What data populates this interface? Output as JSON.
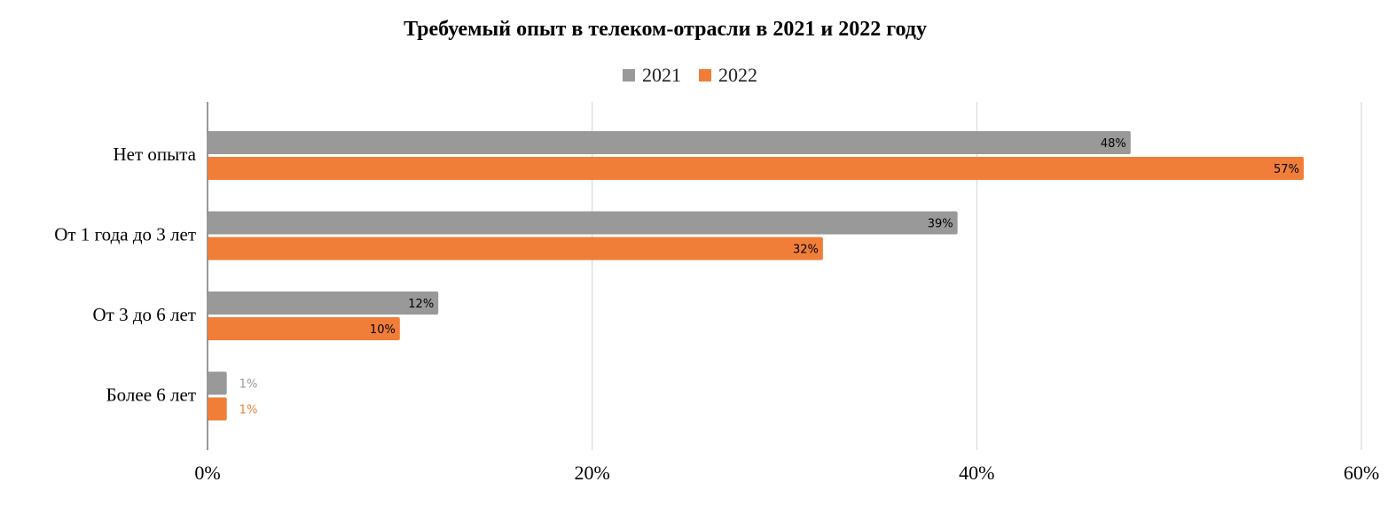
{
  "chart_data": {
    "type": "bar",
    "orientation": "horizontal",
    "title": "Требуемый опыт в телеком-отрасли в 2021 и 2022 году",
    "categories": [
      "Нет опыта",
      "От 1 года до 3 лет",
      "От 3 до 6 лет",
      "Более 6 лет"
    ],
    "series": [
      {
        "name": "2021",
        "color": "#999999",
        "values": [
          48,
          39,
          12,
          1
        ],
        "labels": [
          "48%",
          "39%",
          "12%",
          "1%"
        ]
      },
      {
        "name": "2022",
        "color": "#f07e38",
        "values": [
          57,
          32,
          10,
          1
        ],
        "labels": [
          "57%",
          "32%",
          "10%",
          "1%"
        ]
      }
    ],
    "xlim": [
      0,
      60
    ],
    "xticks": [
      0,
      20,
      40,
      60
    ],
    "xtick_labels": [
      "0%",
      "20%",
      "40%",
      "60%"
    ],
    "xlabel": "",
    "ylabel": "",
    "grid": true,
    "legend_position": "top-center"
  }
}
